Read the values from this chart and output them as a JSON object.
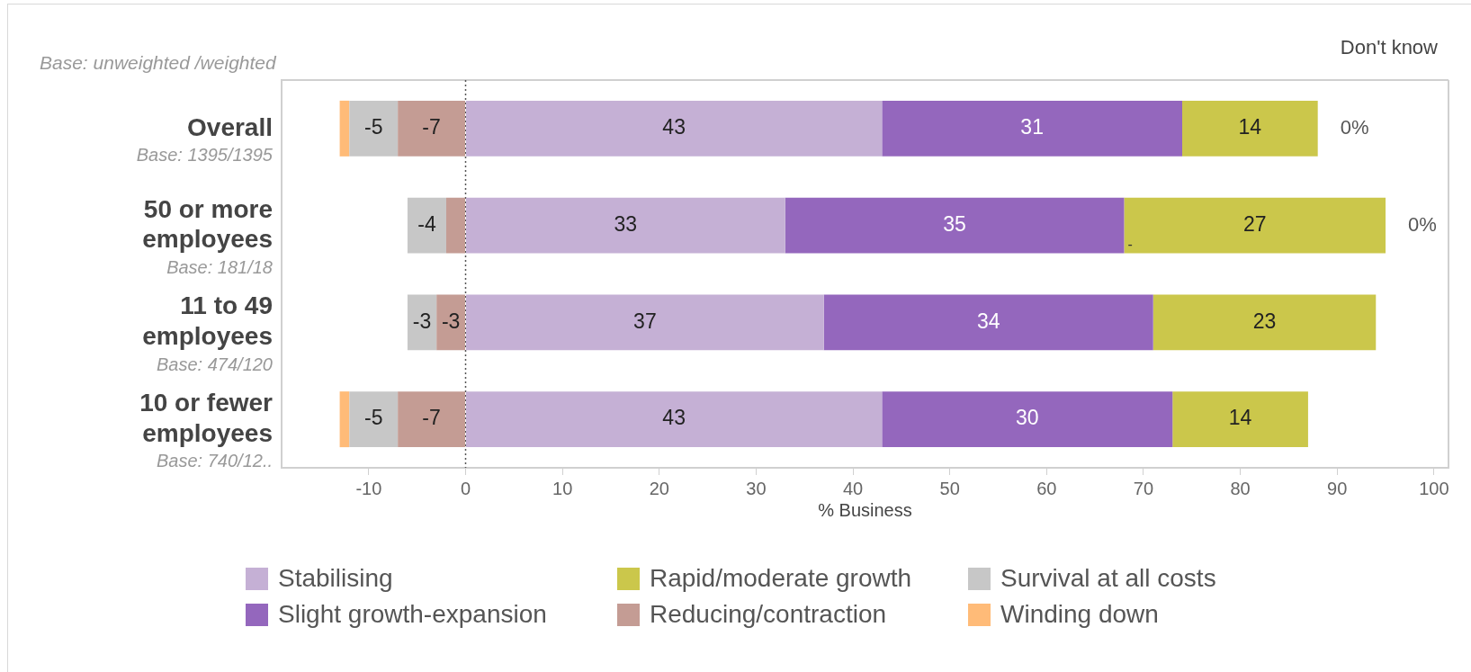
{
  "chart_data": {
    "type": "bar",
    "orientation": "horizontal",
    "stacked": true,
    "categories": [
      "Overall",
      "50 or more employees",
      "11 to 49 employees",
      "10 or fewer employees"
    ],
    "series": [
      {
        "name": "Stabilising",
        "color": "#c5b0d5",
        "values": [
          43,
          33,
          37,
          43
        ],
        "value_labels": [
          "43",
          "33",
          "37",
          "43"
        ]
      },
      {
        "name": "Slight growth-expansion",
        "color": "#9467bd",
        "values": [
          31,
          35,
          34,
          30
        ],
        "value_labels": [
          "31",
          "35",
          "34",
          "30"
        ]
      },
      {
        "name": "Rapid/moderate growth",
        "color": "#cbc74b",
        "values": [
          14,
          27,
          23,
          14
        ],
        "value_labels": [
          "14",
          "27",
          "23",
          "14"
        ]
      },
      {
        "name": "Reducing/contraction",
        "color": "#c49c94",
        "values": [
          -7,
          -2,
          -3,
          -7
        ],
        "value_labels": [
          "-7",
          null,
          "-3",
          "-7"
        ]
      },
      {
        "name": "Survival at all costs",
        "color": "#c7c7c7",
        "values": [
          -5,
          -4,
          -3,
          -5
        ],
        "value_labels": [
          "-5",
          "-4",
          "-3",
          "-5"
        ]
      },
      {
        "name": "Winding down",
        "color": "#ffbb78",
        "values": [
          -1,
          null,
          null,
          -1
        ]
      }
    ],
    "xlabel": "% Business",
    "xlim": [
      -19,
      101.5
    ],
    "xticks": [
      -10,
      0,
      10,
      20,
      30,
      40,
      50,
      60,
      70,
      80,
      90,
      100
    ],
    "ref_lines": [
      {
        "axis": "x",
        "value": 0,
        "line_style": "dotted",
        "color": "#555555"
      }
    ],
    "legend": "bottom",
    "annotations": [
      "Base: unweighted /weighted",
      "Don't know",
      "Base: 1395/1395",
      "Base: 181/18",
      "Base: 474/120",
      "Base: 740/12..",
      {
        "text": "0%",
        "x": 88,
        "y": "Overall"
      },
      {
        "text": "0%",
        "x": 95,
        "y": "50 or more employees"
      },
      {
        "text": "-",
        "x": 68,
        "y": "50 or more employees"
      }
    ]
  }
}
